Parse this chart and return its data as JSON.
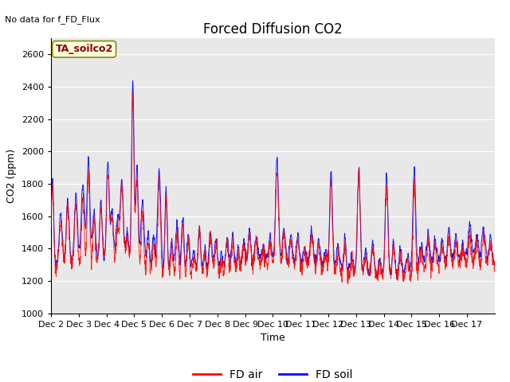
{
  "title": "Forced Diffusion CO2",
  "subtitle": "No data for f_FD_Flux",
  "ylabel": "CO2 (ppm)",
  "xlabel": "Time",
  "annotation_text": "TA_soilco2",
  "ylim": [
    1000,
    2700
  ],
  "yticks": [
    1000,
    1200,
    1400,
    1600,
    1800,
    2000,
    2200,
    2400,
    2600
  ],
  "xtick_labels": [
    "Dec 2",
    "Dec 3",
    "Dec 4",
    "Dec 5",
    "Dec 6",
    "Dec 7",
    "Dec 8",
    "Dec 9",
    "Dec 10",
    "Dec 11",
    "Dec 12",
    "Dec 13",
    "Dec 14",
    "Dec 15",
    "Dec 16",
    "Dec 17"
  ],
  "legend_labels": [
    "FD air",
    "FD soil"
  ],
  "air_color": "red",
  "soil_color": "blue",
  "plot_bg_color": "#e8e8e8",
  "title_fontsize": 12,
  "label_fontsize": 9,
  "tick_fontsize": 8,
  "annotation_fontsize": 9,
  "n_points": 2304,
  "figwidth": 6.4,
  "figheight": 4.8,
  "dpi": 100
}
